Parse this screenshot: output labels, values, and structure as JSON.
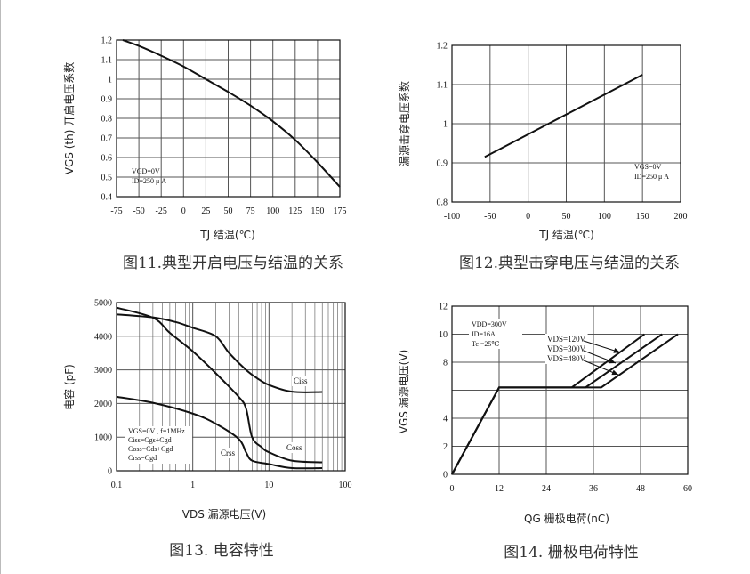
{
  "chart_data": [
    {
      "type": "line",
      "caption": "图11.典型开启电压与结温的关系",
      "xlabel": "TJ 结温(℃)",
      "ylabel": "VGS (th) 开启电压系数",
      "xlim": [
        -75,
        175
      ],
      "ylim": [
        0.4,
        1.2
      ],
      "xticks": [
        "-75",
        "-50",
        "-25",
        "0",
        "25",
        "50",
        "75",
        "100",
        "125",
        "150",
        "175"
      ],
      "yticks": [
        "0.4",
        "0.5",
        "0.6",
        "0.7",
        "0.8",
        "0.9",
        "1",
        "1.1",
        "1.2"
      ],
      "grid": true,
      "annotation": [
        "VGD=0V",
        "ID=250 μ A"
      ],
      "series": [
        {
          "x": [
            -68,
            -50,
            -25,
            0,
            25,
            50,
            75,
            100,
            125,
            150,
            175
          ],
          "y": [
            1.2,
            1.17,
            1.12,
            1.065,
            1.0,
            0.935,
            0.865,
            0.785,
            0.69,
            0.575,
            0.45
          ]
        }
      ]
    },
    {
      "type": "line",
      "caption": "图12.典型击穿电压与结温的关系",
      "xlabel": "TJ 结温(℃)",
      "ylabel": "漏源击穿电压系数",
      "xlim": [
        -100,
        200
      ],
      "ylim": [
        0.8,
        1.2
      ],
      "xticks": [
        "-100",
        "-50",
        "0",
        "50",
        "100",
        "150",
        "200"
      ],
      "yticks": [
        "0.8",
        "0.9",
        "1",
        "1.1",
        "1.2"
      ],
      "grid": true,
      "annotation": [
        "VGS=0V",
        "ID=250 μ A"
      ],
      "series": [
        {
          "x": [
            -57,
            150
          ],
          "y": [
            0.915,
            1.125
          ]
        }
      ]
    },
    {
      "type": "line",
      "caption": "图13. 电容特性",
      "xlabel": "VDS 漏源电压(V)",
      "ylabel": "电容 (pF)",
      "xscale": "log",
      "xlim": [
        0.1,
        100
      ],
      "ylim": [
        0,
        5000
      ],
      "xticks": [
        "0.1",
        "1",
        "10",
        "100"
      ],
      "yticks": [
        "0",
        "1000",
        "2000",
        "3000",
        "4000",
        "5000"
      ],
      "grid": true,
      "annotation": [
        "VGS=0V , f=1MHz",
        "Ciss=Cgs+Cgd",
        "Coss=Cds+Cgd",
        "Crss=Cgd"
      ],
      "series": [
        {
          "name": "Ciss",
          "x": [
            0.1,
            0.3,
            0.6,
            1,
            2,
            3,
            5,
            7,
            10,
            20,
            50
          ],
          "y": [
            4650,
            4560,
            4420,
            4250,
            4000,
            3500,
            3000,
            2750,
            2550,
            2350,
            2340
          ]
        },
        {
          "name": "Coss",
          "x": [
            0.1,
            0.3,
            0.5,
            1,
            2,
            4,
            5,
            6,
            8,
            10,
            20,
            50
          ],
          "y": [
            4850,
            4550,
            4100,
            3550,
            2900,
            2200,
            1850,
            1000,
            700,
            550,
            300,
            250
          ]
        },
        {
          "name": "Crss",
          "x": [
            0.1,
            0.3,
            1,
            2,
            4,
            5,
            6,
            10,
            20,
            50
          ],
          "y": [
            2200,
            2020,
            1700,
            1400,
            950,
            550,
            300,
            200,
            80,
            80
          ]
        }
      ]
    },
    {
      "type": "line",
      "caption": "图14. 栅极电荷特性",
      "xlabel": "QG 栅极电荷(nC)",
      "ylabel": "VGS 漏源电压(V)",
      "xlim": [
        0,
        60
      ],
      "ylim": [
        0,
        12
      ],
      "xticks": [
        "0",
        "12",
        "24",
        "36",
        "48",
        "60"
      ],
      "yticks": [
        "0",
        "2",
        "4",
        "",
        "8",
        "10",
        "12"
      ],
      "grid": true,
      "annotation": [
        "VDD=300V",
        "ID=16A",
        "Tc =25℃"
      ],
      "series": [
        {
          "name": "VDS=120V",
          "x": [
            0,
            12,
            30.5,
            49
          ],
          "y": [
            0,
            6.2,
            6.2,
            10
          ]
        },
        {
          "name": "VDS=300V",
          "x": [
            0,
            12,
            34,
            53.5
          ],
          "y": [
            0,
            6.2,
            6.2,
            10
          ]
        },
        {
          "name": "VDS=480V",
          "x": [
            0,
            12,
            38,
            57.5
          ],
          "y": [
            0,
            6.2,
            6.2,
            10
          ]
        }
      ]
    }
  ],
  "colors": {
    "line": "#111111",
    "grid": "#555555",
    "caption": "#333333"
  }
}
